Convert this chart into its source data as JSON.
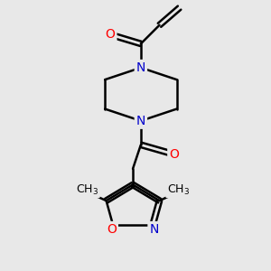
{
  "background_color": "#e8e8e8",
  "bond_color": "#000000",
  "N_color": "#0000cc",
  "O_color": "#ff0000",
  "bond_width": 1.8,
  "font_size_atoms": 10,
  "fig_size": [
    3.0,
    3.0
  ],
  "dpi": 100,
  "xlim": [
    0,
    10
  ],
  "ylim": [
    0,
    10
  ]
}
